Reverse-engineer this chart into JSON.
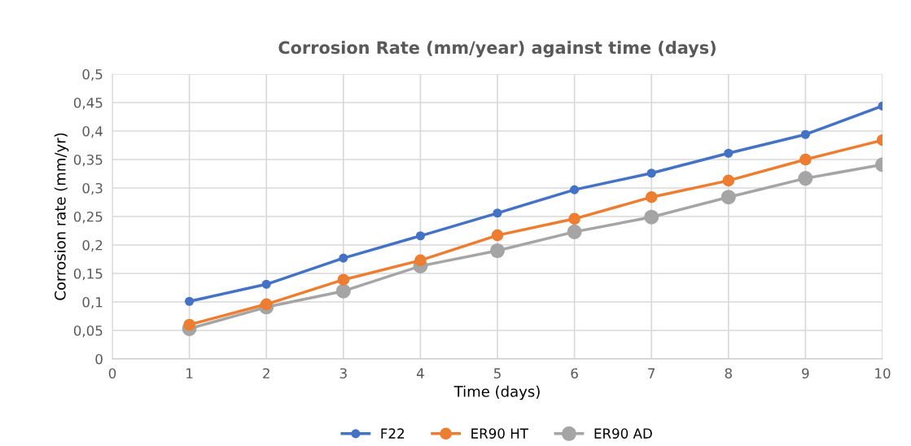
{
  "chart_data": {
    "type": "line",
    "title": "Corrosion Rate (mm/year) against time (days)",
    "xlabel": "Time (days)",
    "ylabel": "Corrosion rate (mm/yr)",
    "x": [
      1,
      2,
      3,
      4,
      5,
      6,
      7,
      8,
      9,
      10
    ],
    "series": [
      {
        "name": "F22",
        "color": "#4472c4",
        "values": [
          0.101,
          0.131,
          0.177,
          0.216,
          0.256,
          0.297,
          0.326,
          0.361,
          0.394,
          0.444
        ]
      },
      {
        "name": "ER90 HT",
        "color": "#ed7d31",
        "values": [
          0.06,
          0.096,
          0.139,
          0.173,
          0.217,
          0.246,
          0.284,
          0.313,
          0.35,
          0.384
        ]
      },
      {
        "name": "ER90 AD",
        "color": "#a5a5a5",
        "values": [
          0.053,
          0.091,
          0.119,
          0.163,
          0.19,
          0.223,
          0.249,
          0.284,
          0.317,
          0.341
        ]
      }
    ],
    "xlim": [
      0,
      10
    ],
    "xticks": [
      0,
      1,
      2,
      3,
      4,
      5,
      6,
      7,
      8,
      9,
      10
    ],
    "ylim": [
      0,
      0.5
    ],
    "yticks": [
      0,
      {
        "value": 0.05,
        "label": "0,05"
      },
      {
        "value": 0.1,
        "label": "0,1"
      },
      {
        "value": 0.15,
        "label": "0,15"
      },
      {
        "value": 0.2,
        "label": "0,2"
      },
      {
        "value": 0.25,
        "label": "0,25"
      },
      {
        "value": 0.3,
        "label": "0,3"
      },
      {
        "value": 0.35,
        "label": "0,35"
      },
      {
        "value": 0.4,
        "label": "0,4"
      },
      {
        "value": 0.45,
        "label": "0,45"
      },
      {
        "value": 0.5,
        "label": "0,5"
      }
    ],
    "grid": true,
    "legend": "bottom",
    "marker": "circle",
    "line_style": "solid"
  }
}
